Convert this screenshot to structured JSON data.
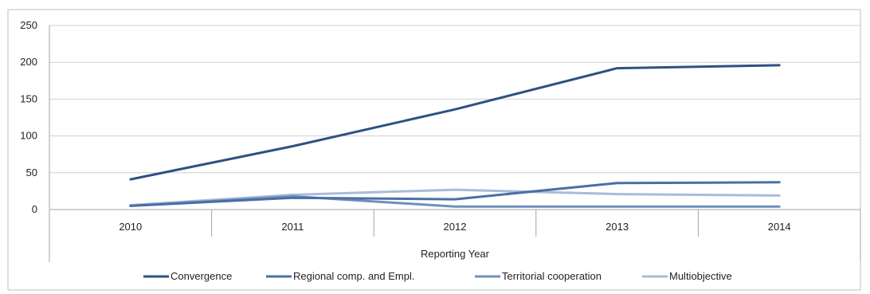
{
  "chart_data": {
    "type": "line",
    "title": "",
    "xlabel": "Reporting Year",
    "ylabel": "",
    "categories": [
      "2010",
      "2011",
      "2012",
      "2013",
      "2014"
    ],
    "ylim": [
      0,
      250
    ],
    "yticks": [
      0,
      50,
      100,
      150,
      200,
      250
    ],
    "grid": true,
    "legend_position": "bottom",
    "series": [
      {
        "name": "Convergence",
        "color": "#2f5180",
        "values": [
          41,
          86,
          136,
          192,
          196
        ]
      },
      {
        "name": "Regional comp. and Empl.",
        "color": "#4a6fa5",
        "values": [
          5,
          16,
          14,
          36,
          37
        ]
      },
      {
        "name": "Territorial cooperation",
        "color": "#6f8fbc",
        "values": [
          5,
          18,
          4,
          4,
          4
        ]
      },
      {
        "name": "Multiobjective",
        "color": "#a9bcd9",
        "values": [
          6,
          20,
          27,
          21,
          19
        ]
      }
    ]
  }
}
